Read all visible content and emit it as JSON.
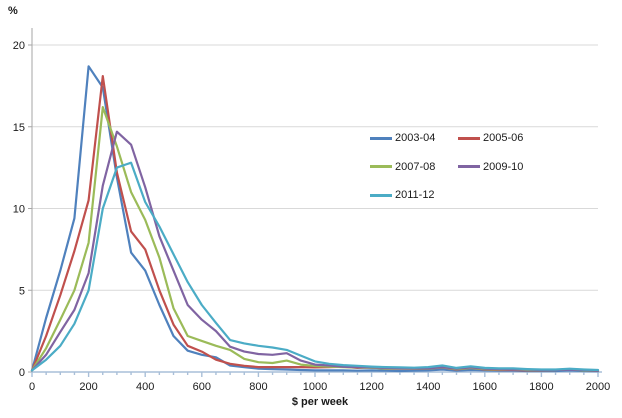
{
  "page": {
    "unit_label": "%",
    "x_axis_title": "$ per week"
  },
  "chart_data": {
    "type": "line",
    "title": "",
    "xlabel": "$ per week",
    "ylabel": "%",
    "xlim": [
      0,
      2000
    ],
    "ylim": [
      0,
      20
    ],
    "grid": "horizontal",
    "legend_position": "inside-upper-right",
    "x_tick_interval": 200,
    "x_minor_tick_interval": 50,
    "y_tick_interval": 5,
    "x_tick_labels": [
      "0",
      "200",
      "400",
      "600",
      "800",
      "1000",
      "1200",
      "1400",
      "1600",
      "1800",
      "2000"
    ],
    "y_tick_labels": [
      "0",
      "5",
      "10",
      "15",
      "20"
    ],
    "x": [
      0,
      50,
      100,
      150,
      200,
      250,
      300,
      350,
      400,
      450,
      500,
      550,
      600,
      650,
      700,
      750,
      800,
      850,
      900,
      950,
      1000,
      1050,
      1100,
      1150,
      1200,
      1250,
      1300,
      1350,
      1400,
      1450,
      1500,
      1550,
      1600,
      1650,
      1700,
      1750,
      1800,
      1850,
      1900,
      1950,
      2000
    ],
    "series": [
      {
        "name": "2003-04",
        "color": "#4F81BD",
        "values": [
          0.1,
          3.3,
          6.2,
          9.4,
          18.7,
          17.4,
          11.9,
          7.3,
          6.2,
          4.1,
          2.2,
          1.3,
          1.05,
          0.9,
          0.4,
          0.3,
          0.2,
          0.18,
          0.15,
          0.12,
          0.1,
          0.1,
          0.1,
          0.08,
          0.1,
          0.08,
          0.06,
          0.08,
          0.1,
          0.15,
          0.08,
          0.12,
          0.1,
          0.08,
          0.08,
          0.06,
          0.06,
          0.06,
          0.1,
          0.06,
          0.05
        ]
      },
      {
        "name": "2005-06",
        "color": "#C0504D",
        "values": [
          0.1,
          2.2,
          4.7,
          7.4,
          10.5,
          18.1,
          12.2,
          8.6,
          7.5,
          5.0,
          2.9,
          1.6,
          1.25,
          0.75,
          0.5,
          0.38,
          0.3,
          0.3,
          0.3,
          0.3,
          0.28,
          0.3,
          0.32,
          0.25,
          0.28,
          0.2,
          0.2,
          0.2,
          0.2,
          0.28,
          0.15,
          0.25,
          0.15,
          0.12,
          0.12,
          0.1,
          0.1,
          0.12,
          0.18,
          0.1,
          0.08
        ]
      },
      {
        "name": "2007-08",
        "color": "#9BBB59",
        "values": [
          0.1,
          1.45,
          3.2,
          5.0,
          7.9,
          16.2,
          13.8,
          11.0,
          9.3,
          7.0,
          3.9,
          2.2,
          1.9,
          1.6,
          1.35,
          0.8,
          0.6,
          0.55,
          0.7,
          0.45,
          0.37,
          0.33,
          0.3,
          0.28,
          0.25,
          0.22,
          0.2,
          0.2,
          0.2,
          0.28,
          0.18,
          0.25,
          0.18,
          0.15,
          0.15,
          0.12,
          0.12,
          0.12,
          0.18,
          0.1,
          0.1
        ]
      },
      {
        "name": "2009-10",
        "color": "#8064A2",
        "values": [
          0.1,
          1.05,
          2.45,
          3.8,
          6.05,
          11.4,
          14.7,
          13.9,
          11.3,
          8.3,
          6.2,
          4.1,
          3.2,
          2.5,
          1.55,
          1.25,
          1.1,
          1.05,
          1.15,
          0.7,
          0.45,
          0.4,
          0.32,
          0.3,
          0.28,
          0.25,
          0.22,
          0.22,
          0.22,
          0.3,
          0.2,
          0.28,
          0.2,
          0.18,
          0.15,
          0.15,
          0.12,
          0.12,
          0.15,
          0.12,
          0.1
        ]
      },
      {
        "name": "2011-12",
        "color": "#4BACC6",
        "values": [
          0.1,
          0.75,
          1.6,
          2.95,
          5.0,
          10.0,
          12.5,
          12.8,
          10.4,
          8.9,
          7.2,
          5.5,
          4.1,
          3.0,
          1.95,
          1.75,
          1.6,
          1.5,
          1.35,
          1.0,
          0.65,
          0.5,
          0.42,
          0.38,
          0.33,
          0.3,
          0.28,
          0.26,
          0.3,
          0.4,
          0.25,
          0.35,
          0.25,
          0.22,
          0.22,
          0.18,
          0.15,
          0.15,
          0.2,
          0.15,
          0.12
        ]
      }
    ],
    "colors": {
      "gridline": "#D9D9D9",
      "y_axis": "#A6A6A6",
      "x_axis": "#A9BFD8",
      "tick_label": "#1a1a1a"
    }
  }
}
